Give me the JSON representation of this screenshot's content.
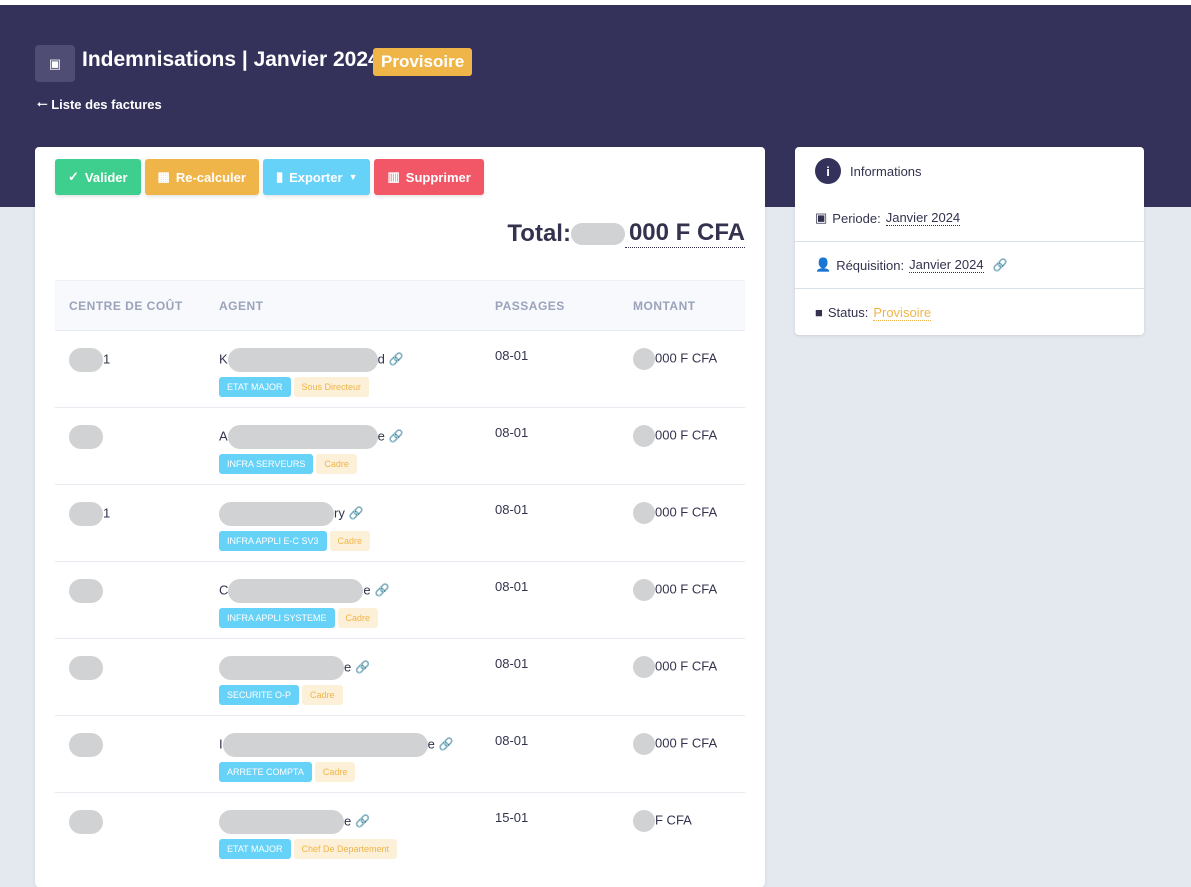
{
  "header": {
    "title": "Indemnisations | Janvier 2024",
    "status_badge": "Provisoire",
    "back_link": "Liste des factures",
    "icon": "money-icon"
  },
  "toolbar": {
    "validate": "Valider",
    "recalculate": "Re-calculer",
    "export": "Exporter",
    "delete": "Supprimer"
  },
  "colors": {
    "header_bg": "#34325a",
    "validate": "#3ecf8e",
    "recalculate": "#f0b549",
    "export": "#67d2f8",
    "delete": "#f25767"
  },
  "total": {
    "label": "Total:",
    "amount_suffix": "000 F CFA"
  },
  "table": {
    "columns": [
      "CENTRE DE COÛT",
      "AGENT",
      "PASSAGES",
      "MONTANT"
    ],
    "rows": [
      {
        "cc": "1",
        "agent_start": "K",
        "agent_end": "d",
        "tag1": "ETAT MAJOR",
        "tag2": "Sous Directeur",
        "passages": "08-01",
        "amount": "000 F CFA"
      },
      {
        "cc": "",
        "agent_start": "A",
        "agent_end": "e",
        "tag1": "INFRA SERVEURS",
        "tag2": "Cadre",
        "passages": "08-01",
        "amount": "000 F CFA"
      },
      {
        "cc": "1",
        "agent_start": "",
        "agent_end": "ry",
        "tag1": "INFRA APPLI E-C SV3",
        "tag2": "Cadre",
        "passages": "08-01",
        "amount": "000 F CFA"
      },
      {
        "cc": "",
        "agent_start": "C",
        "agent_end": "e",
        "tag1": "INFRA APPLI SYSTEME",
        "tag2": "Cadre",
        "passages": "08-01",
        "amount": "000 F CFA"
      },
      {
        "cc": "",
        "agent_start": "",
        "agent_end": "e",
        "tag1": "SECURITE O-P",
        "tag2": "Cadre",
        "passages": "08-01",
        "amount": "000 F CFA"
      },
      {
        "cc": "",
        "agent_start": "I",
        "agent_end": "e",
        "tag1": "ARRETE COMPTA",
        "tag2": "Cadre",
        "passages": "08-01",
        "amount": "000 F CFA"
      },
      {
        "cc": "",
        "agent_start": "",
        "agent_end": "e",
        "tag1": "ETAT MAJOR",
        "tag2": "Chef De Departement",
        "passages": "15-01",
        "amount": "F CFA"
      }
    ]
  },
  "info": {
    "title": "Informations",
    "periode_label": "Periode:",
    "periode": "Janvier 2024",
    "requisition_label": "Réquisition:",
    "requisition": "Janvier 2024",
    "status_label": "Status:",
    "status": "Provisoire"
  }
}
